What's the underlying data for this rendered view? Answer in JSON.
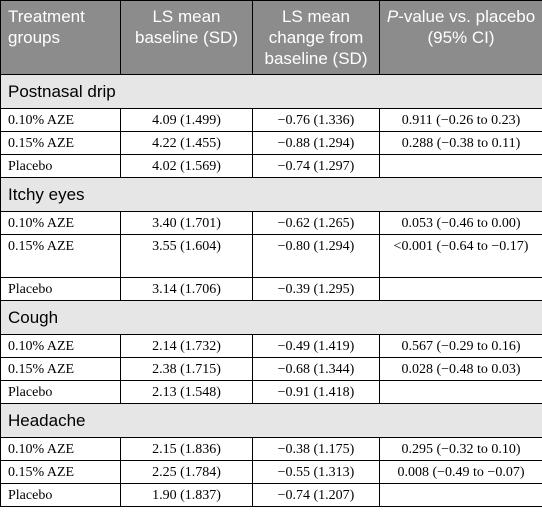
{
  "table": {
    "headers": {
      "col0": "Treatment groups",
      "col1": "LS mean baseline (SD)",
      "col2": "LS mean change from baseline (SD)",
      "col3_italic": "P",
      "col3_rest": "-value vs. placebo (95% CI)"
    },
    "sections": [
      {
        "title": "Postnasal drip",
        "rows": [
          {
            "group": "0.10% AZE",
            "baseline": "4.09 (1.499)",
            "change": "−0.76 (1.336)",
            "pvalue": "0.911 (−0.26 to 0.23)"
          },
          {
            "group": "0.15% AZE",
            "baseline": "4.22 (1.455)",
            "change": "−0.88 (1.294)",
            "pvalue": "0.288 (−0.38 to 0.11)"
          },
          {
            "group": "Placebo",
            "baseline": "4.02 (1.569)",
            "change": "−0.74 (1.297)",
            "pvalue": ""
          }
        ]
      },
      {
        "title": "Itchy eyes",
        "rows": [
          {
            "group": "0.10% AZE",
            "baseline": "3.40 (1.701)",
            "change": "−0.62 (1.265)",
            "pvalue": "0.053 (−0.46 to 0.00)"
          },
          {
            "group": "0.15% AZE",
            "baseline": "3.55 (1.604)",
            "change": "−0.80 (1.294)",
            "pvalue": "<0.001 (−0.64 to −0.17)"
          },
          {
            "group": "Placebo",
            "baseline": "3.14 (1.706)",
            "change": "−0.39 (1.295)",
            "pvalue": ""
          }
        ]
      },
      {
        "title": "Cough",
        "rows": [
          {
            "group": "0.10% AZE",
            "baseline": "2.14 (1.732)",
            "change": "−0.49 (1.419)",
            "pvalue": "0.567 (−0.29 to 0.16)"
          },
          {
            "group": "0.15% AZE",
            "baseline": "2.38 (1.715)",
            "change": "−0.68 (1.344)",
            "pvalue": "0.028 (−0.48 to 0.03)"
          },
          {
            "group": "Placebo",
            "baseline": "2.13 (1.548)",
            "change": "−0.91 (1.418)",
            "pvalue": ""
          }
        ]
      },
      {
        "title": "Headache",
        "rows": [
          {
            "group": "0.10% AZE",
            "baseline": "2.15 (1.836)",
            "change": "−0.38 (1.175)",
            "pvalue": "0.295 (−0.32 to 0.10)"
          },
          {
            "group": "0.15% AZE",
            "baseline": "2.25 (1.784)",
            "change": "−0.55 (1.313)",
            "pvalue": "0.008 (−0.49 to −0.07)"
          },
          {
            "group": "Placebo",
            "baseline": "1.90 (1.837)",
            "change": "−0.74 (1.207)",
            "pvalue": ""
          }
        ]
      }
    ]
  }
}
